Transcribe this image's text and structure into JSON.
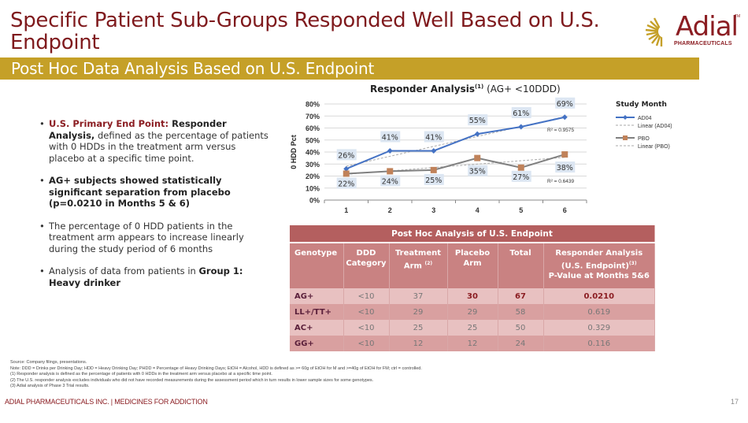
{
  "header": {
    "title": "Specific Patient Sub-Groups Responded Well Based on U.S. Endpoint",
    "subtitle": "Post Hoc Data Analysis Based on U.S. Endpoint"
  },
  "logo": {
    "name": "Adial",
    "tagline": "PHARMACEUTICALS",
    "tm": "TM",
    "brand_gold": "#c5a028",
    "brand_red": "#8b1d22"
  },
  "bullets": [
    {
      "lead": "U.S. Primary End Point:",
      "bold": " Responder  Analysis,",
      "text": " defined as the percentage of patients with 0 HDDs in the treatment arm versus placebo at a specific time point."
    },
    {
      "bold": "AG+ subjects showed statistically significant separation from placebo (p=0.0210 in Months 5 & 6)"
    },
    {
      "text": "The percentage of 0 HDD patients in the treatment arm appears to increase linearly during the study period of 6 months"
    },
    {
      "text": "Analysis of data from patients in ",
      "bold": "Group 1: Heavy drinker"
    }
  ],
  "chart_title": {
    "bold": "Responder Analysis",
    "sup": "(1)",
    "rest": " (AG+ <10DDD)"
  },
  "chart_data": {
    "type": "line",
    "title": "Responder Analysis(1) (AG+ <10DDD)",
    "xlabel": "",
    "ylabel": "0 HDD Pct",
    "x": [
      1,
      2,
      3,
      4,
      5,
      6
    ],
    "ylim": [
      0,
      80
    ],
    "yticks": [
      "0%",
      "10%",
      "20%",
      "30%",
      "40%",
      "50%",
      "60%",
      "70%",
      "80%"
    ],
    "grid": true,
    "legend_title": "Study Month",
    "legend_position": "right",
    "series": [
      {
        "name": "AD04",
        "values": [
          26,
          41,
          41,
          55,
          61,
          69
        ],
        "labels": [
          "26%",
          "41%",
          "41%",
          "55%",
          "61%",
          "69%"
        ],
        "color": "#4472c4",
        "marker": "diamond",
        "trend_name": "Linear (AD04)",
        "r2": "R² = 0.9575"
      },
      {
        "name": "PBO",
        "values": [
          22,
          24,
          25,
          35,
          27,
          38
        ],
        "labels": [
          "22%",
          "24%",
          "25%",
          "35%",
          "27%",
          "38%"
        ],
        "color": "#808080",
        "marker_color": "#c0825a",
        "marker": "square",
        "trend_name": "Linear (PBO)",
        "r2": "R² = 0.6439"
      }
    ]
  },
  "table": {
    "caption": "Post Hoc Analysis of U.S. Endpoint",
    "headers": [
      {
        "text": "Genotype"
      },
      {
        "text": "DDD Category"
      },
      {
        "text": "Treatment Arm",
        "sup": "(2)"
      },
      {
        "text": "Placebo Arm"
      },
      {
        "text": "Total"
      },
      {
        "text": "Responder Analysis (U.S. Endpoint)",
        "sup": "(3)",
        "line2": "P-Value at Months 5&6"
      }
    ],
    "rows": [
      [
        "AG+",
        "<10",
        "37",
        "30",
        "67",
        "0.0210"
      ],
      [
        "LL+/TT+",
        "<10",
        "29",
        "29",
        "58",
        "0.619"
      ],
      [
        "AC+",
        "<10",
        "25",
        "25",
        "50",
        "0.329"
      ],
      [
        "GG+",
        "<10",
        "12",
        "12",
        "24",
        "0.116"
      ]
    ]
  },
  "footnotes": [
    "Source:  Company filings, presentations.",
    "Note:  DDD = Drinks per Drinking Day; HDD = Heavy Drinking Day; PHDD = Percentage of Heavy Drinking Days; EtOH = Alcohol, HDD is defined as >= 60g of EtOH for M and >=40g of EtOH for FM; ctrl = controlled.",
    "(1) Responder analysis is defined as the percentage of patients with 0 HDDs in the treatment arm versus placebo at a specific time point.",
    "(2) The U.S. responder analysis excludes individuals who did not have recorded measurements during the assessment period which in turn results in lower sample sizes for some genotypes.",
    "(3) Adial analysis of Phase 3 Trial results."
  ],
  "footer": {
    "left": "ADIAL PHARMACEUTICALS INC.  |  MEDICINES FOR ADDICTION",
    "page": "17"
  }
}
